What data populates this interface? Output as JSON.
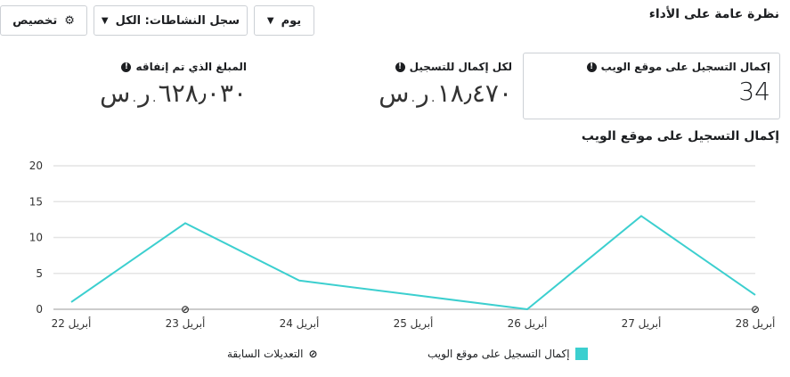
{
  "header": {
    "title": "نظرة عامة على الأداء",
    "customize_label": "تخصيص",
    "activity_filter": "سجل النشاطات: الكل",
    "period": "يوم"
  },
  "metrics": [
    {
      "label": "إكمال التسجيل على موقع الويب",
      "value": "34"
    },
    {
      "label": "لكل إكمال للتسجيل",
      "value": "١٨٫٤٧٠.ر.س"
    },
    {
      "label": "المبلغ الذي تم إنفاقه",
      "value": "٦٢٨٫٠٣٠.ر.س"
    }
  ],
  "colors": {
    "series": "#3ccfcf",
    "text": "#1c1e21",
    "border": "#ccd0d5"
  },
  "chart_data": {
    "type": "line",
    "title": "إكمال التسجيل على موقع الويب",
    "categories": [
      "22 أبريل",
      "23 أبريل",
      "24 أبريل",
      "25 أبريل",
      "26 أبريل",
      "27 أبريل",
      "28 أبريل"
    ],
    "series": [
      {
        "name": "إكمال التسجيل على موقع الويب",
        "values": [
          1,
          12,
          4,
          2,
          0,
          13,
          2
        ]
      }
    ],
    "ylim": [
      0,
      20
    ],
    "yticks": [
      0,
      5,
      10,
      15,
      20
    ],
    "grid": true,
    "legend": "bottom",
    "edit_markers": [
      "23 أبريل",
      "28 أبريل"
    ],
    "edit_legend": "التعديلات السابقة"
  }
}
